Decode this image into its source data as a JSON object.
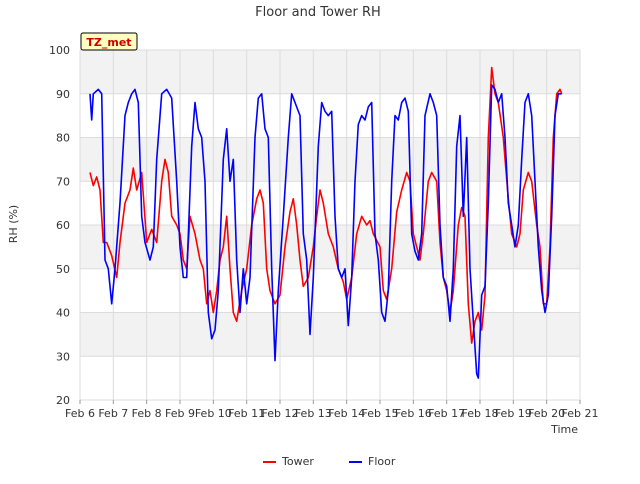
{
  "chart_data": {
    "type": "line",
    "title": "Floor and Tower RH",
    "xlabel": "Time",
    "ylabel": "RH (%)",
    "ylim": [
      20,
      100
    ],
    "yticks": [
      20,
      30,
      40,
      50,
      60,
      70,
      80,
      90,
      100
    ],
    "xlim": [
      "Feb 6",
      "Feb 21"
    ],
    "xticks": [
      "Feb 6",
      "Feb 7",
      "Feb 8",
      "Feb 9",
      "Feb 10",
      "Feb 11",
      "Feb 12",
      "Feb 13",
      "Feb 14",
      "Feb 15",
      "Feb 16",
      "Feb 17",
      "Feb 18",
      "Feb 19",
      "Feb 20",
      "Feb 21"
    ],
    "x_unit": "day",
    "grid": true,
    "background_bands": true,
    "legend_placement": "bottom-center",
    "annotation": "TZ_met",
    "series": [
      {
        "name": "Tower",
        "color": "#ff0000",
        "points": [
          [
            6.3,
            72
          ],
          [
            6.4,
            69
          ],
          [
            6.5,
            71
          ],
          [
            6.6,
            68
          ],
          [
            6.7,
            56
          ],
          [
            6.8,
            56
          ],
          [
            6.95,
            53
          ],
          [
            7.1,
            48
          ],
          [
            7.2,
            56
          ],
          [
            7.35,
            65
          ],
          [
            7.5,
            68
          ],
          [
            7.6,
            73
          ],
          [
            7.7,
            68
          ],
          [
            7.85,
            72
          ],
          [
            8.0,
            56
          ],
          [
            8.15,
            59
          ],
          [
            8.3,
            56
          ],
          [
            8.45,
            70
          ],
          [
            8.55,
            75
          ],
          [
            8.65,
            72
          ],
          [
            8.75,
            62
          ],
          [
            8.9,
            60
          ],
          [
            9.0,
            58
          ],
          [
            9.1,
            52
          ],
          [
            9.2,
            50
          ],
          [
            9.3,
            62
          ],
          [
            9.45,
            58
          ],
          [
            9.6,
            52
          ],
          [
            9.7,
            50
          ],
          [
            9.8,
            42
          ],
          [
            9.9,
            45
          ],
          [
            10.0,
            40
          ],
          [
            10.1,
            45
          ],
          [
            10.2,
            52
          ],
          [
            10.3,
            55
          ],
          [
            10.4,
            62
          ],
          [
            10.5,
            50
          ],
          [
            10.6,
            40
          ],
          [
            10.7,
            38
          ],
          [
            10.85,
            45
          ],
          [
            11.0,
            50
          ],
          [
            11.15,
            60
          ],
          [
            11.3,
            66
          ],
          [
            11.4,
            68
          ],
          [
            11.5,
            65
          ],
          [
            11.6,
            50
          ],
          [
            11.7,
            45
          ],
          [
            11.85,
            42
          ],
          [
            12.0,
            44
          ],
          [
            12.15,
            55
          ],
          [
            12.3,
            63
          ],
          [
            12.4,
            66
          ],
          [
            12.5,
            60
          ],
          [
            12.6,
            52
          ],
          [
            12.7,
            46
          ],
          [
            12.85,
            48
          ],
          [
            13.0,
            55
          ],
          [
            13.1,
            62
          ],
          [
            13.2,
            68
          ],
          [
            13.3,
            65
          ],
          [
            13.45,
            58
          ],
          [
            13.6,
            55
          ],
          [
            13.75,
            50
          ],
          [
            13.9,
            47
          ],
          [
            14.0,
            43
          ],
          [
            14.15,
            48
          ],
          [
            14.3,
            58
          ],
          [
            14.45,
            62
          ],
          [
            14.6,
            60
          ],
          [
            14.7,
            61
          ],
          [
            14.8,
            58
          ],
          [
            15.0,
            55
          ],
          [
            15.1,
            45
          ],
          [
            15.2,
            43
          ],
          [
            15.35,
            50
          ],
          [
            15.5,
            63
          ],
          [
            15.65,
            68
          ],
          [
            15.8,
            72
          ],
          [
            15.9,
            70
          ],
          [
            16.0,
            58
          ],
          [
            16.1,
            55
          ],
          [
            16.2,
            52
          ],
          [
            16.3,
            58
          ],
          [
            16.45,
            70
          ],
          [
            16.55,
            72
          ],
          [
            16.7,
            70
          ],
          [
            16.8,
            56
          ],
          [
            16.9,
            48
          ],
          [
            17.0,
            45
          ],
          [
            17.1,
            40
          ],
          [
            17.2,
            45
          ],
          [
            17.35,
            60
          ],
          [
            17.45,
            64
          ],
          [
            17.55,
            62
          ],
          [
            17.65,
            42
          ],
          [
            17.75,
            33
          ],
          [
            17.85,
            38
          ],
          [
            17.95,
            40
          ],
          [
            18.05,
            36
          ],
          [
            18.15,
            44
          ],
          [
            18.25,
            80
          ],
          [
            18.35,
            96
          ],
          [
            18.45,
            90
          ],
          [
            18.55,
            88
          ],
          [
            18.7,
            80
          ],
          [
            18.85,
            66
          ],
          [
            18.95,
            58
          ],
          [
            19.1,
            55
          ],
          [
            19.2,
            58
          ],
          [
            19.3,
            68
          ],
          [
            19.45,
            72
          ],
          [
            19.55,
            70
          ],
          [
            19.7,
            60
          ],
          [
            19.8,
            55
          ],
          [
            19.9,
            42
          ],
          [
            20.0,
            42
          ],
          [
            20.1,
            55
          ],
          [
            20.2,
            80
          ],
          [
            20.3,
            90
          ],
          [
            20.4,
            91
          ],
          [
            20.45,
            90
          ]
        ]
      },
      {
        "name": "Floor",
        "color": "#0000ff",
        "points": [
          [
            6.3,
            90
          ],
          [
            6.35,
            84
          ],
          [
            6.4,
            90
          ],
          [
            6.55,
            91
          ],
          [
            6.65,
            90
          ],
          [
            6.75,
            52
          ],
          [
            6.85,
            50
          ],
          [
            6.95,
            42
          ],
          [
            7.05,
            50
          ],
          [
            7.2,
            65
          ],
          [
            7.35,
            85
          ],
          [
            7.45,
            88
          ],
          [
            7.55,
            90
          ],
          [
            7.65,
            91
          ],
          [
            7.75,
            88
          ],
          [
            7.85,
            62
          ],
          [
            7.95,
            56
          ],
          [
            8.1,
            52
          ],
          [
            8.2,
            55
          ],
          [
            8.3,
            75
          ],
          [
            8.45,
            90
          ],
          [
            8.6,
            91
          ],
          [
            8.75,
            89
          ],
          [
            8.9,
            70
          ],
          [
            9.0,
            55
          ],
          [
            9.1,
            48
          ],
          [
            9.2,
            48
          ],
          [
            9.35,
            78
          ],
          [
            9.45,
            88
          ],
          [
            9.55,
            82
          ],
          [
            9.65,
            80
          ],
          [
            9.75,
            70
          ],
          [
            9.85,
            40
          ],
          [
            9.95,
            34
          ],
          [
            10.05,
            36
          ],
          [
            10.15,
            45
          ],
          [
            10.3,
            75
          ],
          [
            10.4,
            82
          ],
          [
            10.5,
            70
          ],
          [
            10.6,
            75
          ],
          [
            10.7,
            52
          ],
          [
            10.8,
            40
          ],
          [
            10.9,
            50
          ],
          [
            11.0,
            42
          ],
          [
            11.1,
            48
          ],
          [
            11.25,
            80
          ],
          [
            11.35,
            89
          ],
          [
            11.45,
            90
          ],
          [
            11.55,
            82
          ],
          [
            11.65,
            80
          ],
          [
            11.75,
            50
          ],
          [
            11.85,
            29
          ],
          [
            11.95,
            45
          ],
          [
            12.1,
            62
          ],
          [
            12.25,
            80
          ],
          [
            12.35,
            90
          ],
          [
            12.45,
            88
          ],
          [
            12.6,
            85
          ],
          [
            12.7,
            58
          ],
          [
            12.8,
            52
          ],
          [
            12.9,
            35
          ],
          [
            13.0,
            48
          ],
          [
            13.15,
            78
          ],
          [
            13.25,
            88
          ],
          [
            13.35,
            86
          ],
          [
            13.45,
            85
          ],
          [
            13.55,
            86
          ],
          [
            13.65,
            62
          ],
          [
            13.75,
            50
          ],
          [
            13.85,
            48
          ],
          [
            13.95,
            50
          ],
          [
            14.05,
            37
          ],
          [
            14.15,
            48
          ],
          [
            14.25,
            70
          ],
          [
            14.35,
            83
          ],
          [
            14.45,
            85
          ],
          [
            14.55,
            84
          ],
          [
            14.65,
            87
          ],
          [
            14.75,
            88
          ],
          [
            14.85,
            58
          ],
          [
            14.95,
            52
          ],
          [
            15.05,
            40
          ],
          [
            15.15,
            38
          ],
          [
            15.25,
            45
          ],
          [
            15.35,
            70
          ],
          [
            15.45,
            85
          ],
          [
            15.55,
            84
          ],
          [
            15.65,
            88
          ],
          [
            15.75,
            89
          ],
          [
            15.85,
            86
          ],
          [
            15.95,
            58
          ],
          [
            16.05,
            54
          ],
          [
            16.15,
            52
          ],
          [
            16.25,
            58
          ],
          [
            16.35,
            85
          ],
          [
            16.5,
            90
          ],
          [
            16.6,
            88
          ],
          [
            16.7,
            85
          ],
          [
            16.8,
            60
          ],
          [
            16.9,
            48
          ],
          [
            17.0,
            46
          ],
          [
            17.1,
            38
          ],
          [
            17.2,
            50
          ],
          [
            17.3,
            78
          ],
          [
            17.4,
            85
          ],
          [
            17.5,
            62
          ],
          [
            17.6,
            80
          ],
          [
            17.7,
            50
          ],
          [
            17.8,
            38
          ],
          [
            17.9,
            26
          ],
          [
            17.95,
            25
          ],
          [
            18.05,
            44
          ],
          [
            18.15,
            46
          ],
          [
            18.25,
            65
          ],
          [
            18.35,
            92
          ],
          [
            18.45,
            91
          ],
          [
            18.55,
            88
          ],
          [
            18.65,
            90
          ],
          [
            18.75,
            80
          ],
          [
            18.85,
            65
          ],
          [
            18.95,
            60
          ],
          [
            19.05,
            55
          ],
          [
            19.15,
            60
          ],
          [
            19.25,
            75
          ],
          [
            19.35,
            88
          ],
          [
            19.45,
            90
          ],
          [
            19.55,
            85
          ],
          [
            19.65,
            70
          ],
          [
            19.75,
            55
          ],
          [
            19.85,
            45
          ],
          [
            19.95,
            40
          ],
          [
            20.05,
            44
          ],
          [
            20.15,
            62
          ],
          [
            20.25,
            85
          ],
          [
            20.35,
            90
          ],
          [
            20.45,
            90
          ]
        ]
      }
    ]
  }
}
